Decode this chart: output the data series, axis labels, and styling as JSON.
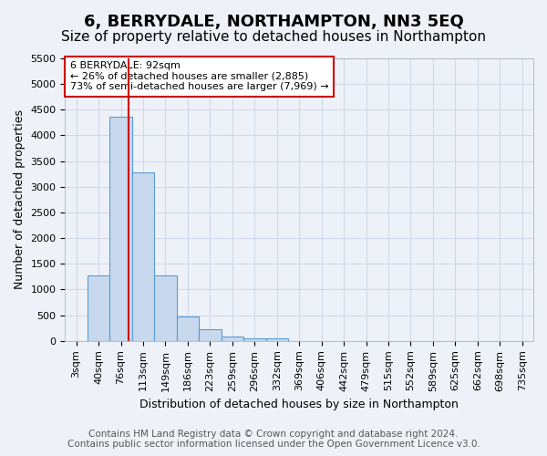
{
  "title": "6, BERRYDALE, NORTHAMPTON, NN3 5EQ",
  "subtitle": "Size of property relative to detached houses in Northampton",
  "xlabel": "Distribution of detached houses by size in Northampton",
  "ylabel": "Number of detached properties",
  "footer_line1": "Contains HM Land Registry data © Crown copyright and database right 2024.",
  "footer_line2": "Contains public sector information licensed under the Open Government Licence v3.0.",
  "annotation_line1": "6 BERRYDALE: 92sqm",
  "annotation_line2": "← 26% of detached houses are smaller (2,885)",
  "annotation_line3": "73% of semi-detached houses are larger (7,969) →",
  "bar_values": [
    0,
    1270,
    4360,
    3280,
    1270,
    480,
    220,
    90,
    55,
    55,
    0,
    0,
    0,
    0,
    0,
    0,
    0,
    0,
    0,
    0,
    0
  ],
  "bin_labels": [
    "3sqm",
    "40sqm",
    "76sqm",
    "113sqm",
    "149sqm",
    "186sqm",
    "223sqm",
    "259sqm",
    "296sqm",
    "332sqm",
    "369sqm",
    "406sqm",
    "442sqm",
    "479sqm",
    "515sqm",
    "552sqm",
    "589sqm",
    "625sqm",
    "662sqm",
    "698sqm",
    "735sqm"
  ],
  "bar_color": "#c8d9ed",
  "bar_edge_color": "#5b9bd5",
  "grid_color": "#d0d8e8",
  "background_color": "#eef2f8",
  "annotation_box_color": "#ffffff",
  "annotation_box_edge": "#cc0000",
  "vline_color": "#cc0000",
  "vline_x": 2.35,
  "ylim": [
    0,
    5500
  ],
  "yticks": [
    0,
    500,
    1000,
    1500,
    2000,
    2500,
    3000,
    3500,
    4000,
    4500,
    5000,
    5500
  ],
  "title_fontsize": 13,
  "subtitle_fontsize": 11,
  "label_fontsize": 9,
  "tick_fontsize": 8,
  "footer_fontsize": 7.5,
  "annotation_fontsize": 8
}
